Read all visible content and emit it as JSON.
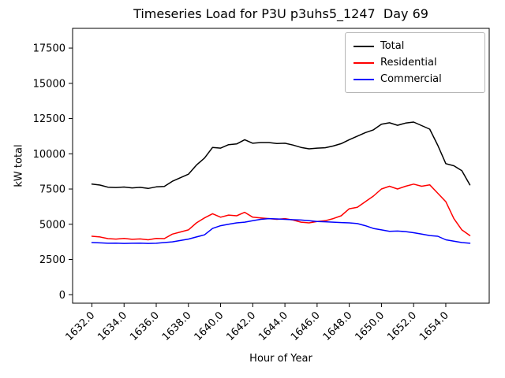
{
  "title": "Timeseries Load for P3U p3uhs5_1247  Day 69",
  "chart_data": {
    "type": "line",
    "title": "Timeseries Load for P3U p3uhs5_1247  Day 69",
    "xlabel": "Hour of Year",
    "ylabel": "kW total",
    "grid": false,
    "legend_position": "upper right",
    "xlim": [
      1630.8,
      1656.7
    ],
    "ylim": [
      -600,
      18900
    ],
    "x_ticks": [
      1632,
      1634,
      1636,
      1638,
      1640,
      1642,
      1644,
      1646,
      1648,
      1650,
      1652,
      1654
    ],
    "x_tick_labels": [
      "1632.0",
      "1634.0",
      "1636.0",
      "1638.0",
      "1640.0",
      "1642.0",
      "1644.0",
      "1646.0",
      "1648.0",
      "1650.0",
      "1652.0",
      "1654.0"
    ],
    "y_ticks": [
      0,
      2500,
      5000,
      7500,
      10000,
      12500,
      15000,
      17500
    ],
    "x": [
      1632.0,
      1632.5,
      1633.0,
      1633.5,
      1634.0,
      1634.5,
      1635.0,
      1635.5,
      1636.0,
      1636.5,
      1637.0,
      1637.5,
      1638.0,
      1638.5,
      1639.0,
      1639.5,
      1640.0,
      1640.5,
      1641.0,
      1641.5,
      1642.0,
      1642.5,
      1643.0,
      1643.5,
      1644.0,
      1644.5,
      1645.0,
      1645.5,
      1646.0,
      1646.5,
      1647.0,
      1647.5,
      1648.0,
      1648.5,
      1649.0,
      1649.5,
      1650.0,
      1650.5,
      1651.0,
      1651.5,
      1652.0,
      1652.5,
      1653.0,
      1653.5,
      1654.0,
      1654.5,
      1655.0,
      1655.5
    ],
    "series": [
      {
        "name": "Total",
        "color": "#000000",
        "values": [
          7850,
          7780,
          7630,
          7610,
          7640,
          7580,
          7620,
          7540,
          7650,
          7680,
          8050,
          8300,
          8550,
          9200,
          9700,
          10450,
          10400,
          10650,
          10700,
          11000,
          10750,
          10800,
          10800,
          10730,
          10750,
          10620,
          10450,
          10350,
          10400,
          10430,
          10550,
          10720,
          11000,
          11250,
          11500,
          11700,
          12100,
          12200,
          12020,
          12180,
          12250,
          12000,
          11750,
          10600,
          9300,
          9150,
          8800,
          7800
        ]
      },
      {
        "name": "Residential",
        "color": "#ff0000",
        "values": [
          4150,
          4100,
          3980,
          3950,
          4000,
          3930,
          3960,
          3900,
          4000,
          3980,
          4300,
          4450,
          4600,
          5100,
          5450,
          5750,
          5500,
          5650,
          5600,
          5850,
          5500,
          5450,
          5400,
          5350,
          5400,
          5300,
          5150,
          5100,
          5200,
          5250,
          5400,
          5600,
          6100,
          6200,
          6600,
          7000,
          7500,
          7700,
          7500,
          7700,
          7850,
          7700,
          7800,
          7200,
          6600,
          5400,
          4600,
          4200
        ]
      },
      {
        "name": "Commercial",
        "color": "#0000ff",
        "values": [
          3700,
          3680,
          3650,
          3660,
          3640,
          3650,
          3660,
          3640,
          3650,
          3700,
          3750,
          3850,
          3950,
          4100,
          4250,
          4700,
          4900,
          5000,
          5100,
          5150,
          5250,
          5350,
          5400,
          5380,
          5350,
          5320,
          5300,
          5250,
          5200,
          5180,
          5150,
          5120,
          5100,
          5050,
          4900,
          4700,
          4600,
          4500,
          4520,
          4480,
          4400,
          4300,
          4200,
          4150,
          3900,
          3800,
          3700,
          3650
        ]
      }
    ]
  },
  "legend": {
    "entries": [
      "Total",
      "Residential",
      "Commercial"
    ]
  }
}
